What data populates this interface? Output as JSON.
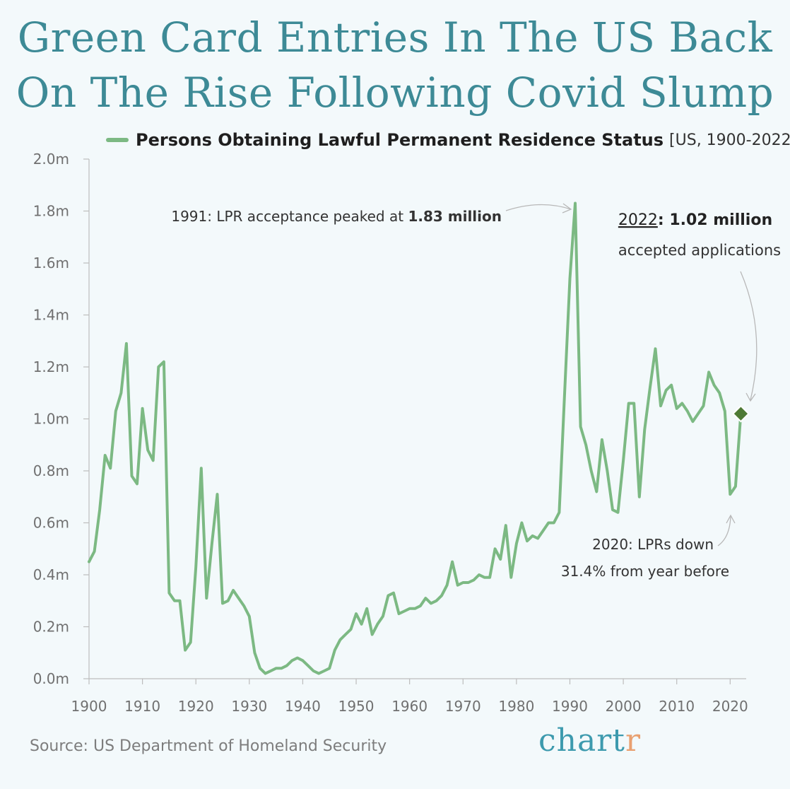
{
  "title_line1": "Green Card Entries In The US Back",
  "title_line2": "On The Rise Following Covid Slump",
  "legend_label": "Persons Obtaining Lawful Permanent Residence Status",
  "legend_range": "[US, 1900-2022]",
  "source": "Source: US Department of Homeland Security",
  "brand_main": "chart",
  "brand_accent": "r",
  "colors": {
    "title": "#3d8a96",
    "line": "#7cb983",
    "highlight": "#4e7a35",
    "brand": "#3d9aae",
    "brand_accent": "#e9a070"
  },
  "annotations": {
    "peak_prefix": "1991: LPR acceptance peaked at ",
    "peak_value": "1.83 million",
    "latest_year": "2022",
    "latest_value": ": 1.02 million",
    "latest_desc": "accepted applications",
    "covid_line1": "2020: LPRs down",
    "covid_line2": "31.4% from year before"
  },
  "chart_data": {
    "type": "line",
    "title": "Persons Obtaining Lawful Permanent Residence Status",
    "xlabel": "",
    "ylabel": "",
    "xlim": [
      1900,
      2023
    ],
    "ylim": [
      0,
      2.0
    ],
    "y_unit": "millions",
    "x_ticks": [
      1900,
      1910,
      1920,
      1930,
      1940,
      1950,
      1960,
      1970,
      1980,
      1990,
      2000,
      2010,
      2020
    ],
    "y_ticks": [
      0,
      0.2,
      0.4,
      0.6,
      0.8,
      1.0,
      1.2,
      1.4,
      1.6,
      1.8,
      2.0
    ],
    "y_tick_labels": [
      "0.0m",
      "0.2m",
      "0.4m",
      "0.6m",
      "0.8m",
      "1.0m",
      "1.2m",
      "1.4m",
      "1.6m",
      "1.8m",
      "2.0m"
    ],
    "highlight": {
      "x": 2022,
      "y": 1.02
    },
    "series": [
      {
        "name": "Persons Obtaining Lawful Permanent Residence Status",
        "x": [
          1900,
          1901,
          1902,
          1903,
          1904,
          1905,
          1906,
          1907,
          1908,
          1909,
          1910,
          1911,
          1912,
          1913,
          1914,
          1915,
          1916,
          1917,
          1918,
          1919,
          1920,
          1921,
          1922,
          1923,
          1924,
          1925,
          1926,
          1927,
          1928,
          1929,
          1930,
          1931,
          1932,
          1933,
          1934,
          1935,
          1936,
          1937,
          1938,
          1939,
          1940,
          1941,
          1942,
          1943,
          1944,
          1945,
          1946,
          1947,
          1948,
          1949,
          1950,
          1951,
          1952,
          1953,
          1954,
          1955,
          1956,
          1957,
          1958,
          1959,
          1960,
          1961,
          1962,
          1963,
          1964,
          1965,
          1966,
          1967,
          1968,
          1969,
          1970,
          1971,
          1972,
          1973,
          1974,
          1975,
          1976,
          1977,
          1978,
          1979,
          1980,
          1981,
          1982,
          1983,
          1984,
          1985,
          1986,
          1987,
          1988,
          1989,
          1990,
          1991,
          1992,
          1993,
          1994,
          1995,
          1996,
          1997,
          1998,
          1999,
          2000,
          2001,
          2002,
          2003,
          2004,
          2005,
          2006,
          2007,
          2008,
          2009,
          2010,
          2011,
          2012,
          2013,
          2014,
          2015,
          2016,
          2017,
          2018,
          2019,
          2020,
          2021,
          2022
        ],
        "values": [
          0.45,
          0.49,
          0.65,
          0.86,
          0.81,
          1.03,
          1.1,
          1.29,
          0.78,
          0.75,
          1.04,
          0.88,
          0.84,
          1.2,
          1.22,
          0.33,
          0.3,
          0.3,
          0.11,
          0.14,
          0.43,
          0.81,
          0.31,
          0.52,
          0.71,
          0.29,
          0.3,
          0.34,
          0.31,
          0.28,
          0.24,
          0.1,
          0.04,
          0.02,
          0.03,
          0.04,
          0.04,
          0.05,
          0.07,
          0.08,
          0.07,
          0.05,
          0.03,
          0.02,
          0.03,
          0.04,
          0.11,
          0.15,
          0.17,
          0.19,
          0.25,
          0.21,
          0.27,
          0.17,
          0.21,
          0.24,
          0.32,
          0.33,
          0.25,
          0.26,
          0.27,
          0.27,
          0.28,
          0.31,
          0.29,
          0.3,
          0.32,
          0.36,
          0.45,
          0.36,
          0.37,
          0.37,
          0.38,
          0.4,
          0.39,
          0.39,
          0.5,
          0.46,
          0.59,
          0.39,
          0.52,
          0.6,
          0.53,
          0.55,
          0.54,
          0.57,
          0.6,
          0.6,
          0.64,
          1.09,
          1.54,
          1.83,
          0.97,
          0.9,
          0.8,
          0.72,
          0.92,
          0.8,
          0.65,
          0.64,
          0.84,
          1.06,
          1.06,
          0.7,
          0.96,
          1.12,
          1.27,
          1.05,
          1.11,
          1.13,
          1.04,
          1.06,
          1.03,
          0.99,
          1.02,
          1.05,
          1.18,
          1.13,
          1.1,
          1.03,
          0.71,
          0.74,
          1.02
        ]
      }
    ]
  }
}
